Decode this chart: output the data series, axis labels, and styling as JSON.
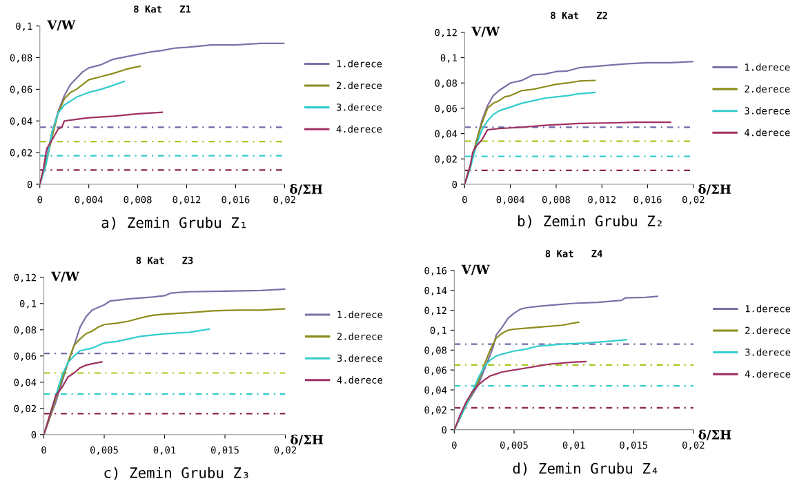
{
  "chart_data": [
    {
      "type": "line",
      "title": "8 Kat   Z1",
      "xlabel": "δ/ΣH",
      "ylabel": "V/W",
      "legend": "right",
      "grid": false,
      "xlim": [
        0,
        0.02
      ],
      "ylim": [
        0,
        0.1
      ],
      "xticks": [
        0,
        {
          "value": 0.004,
          "label": "0,004"
        },
        {
          "value": 0.008,
          "label": "0,008"
        },
        {
          "value": 0.012,
          "label": "0,012"
        },
        {
          "value": 0.016,
          "label": "0,016"
        },
        {
          "value": 0.02,
          "label": "0,02"
        }
      ],
      "yticks": [
        0,
        {
          "value": 0.02,
          "label": "0,02"
        },
        {
          "value": 0.04,
          "label": "0,04"
        },
        {
          "value": 0.06,
          "label": "0,06"
        },
        {
          "value": 0.08,
          "label": "0,08"
        },
        {
          "value": 0.1,
          "label": "0,1"
        }
      ],
      "series": [
        {
          "name": "1.derece",
          "color": "#7b70a8",
          "x": [
            0,
            0.0005,
            0.001,
            0.0015,
            0.002,
            0.0025,
            0.003,
            0.0035,
            0.004,
            0.005,
            0.006,
            0.007,
            0.008,
            0.009,
            0.01,
            0.011,
            0.012,
            0.014,
            0.016,
            0.018,
            0.02
          ],
          "values": [
            0,
            0.015,
            0.033,
            0.046,
            0.056,
            0.063,
            0.067,
            0.071,
            0.0735,
            0.0755,
            0.079,
            0.0805,
            0.082,
            0.0835,
            0.0845,
            0.086,
            0.0865,
            0.088,
            0.088,
            0.089,
            0.089
          ]
        },
        {
          "name": "2.derece",
          "color": "#8c8c1c",
          "x": [
            0,
            0.0005,
            0.001,
            0.0015,
            0.002,
            0.0025,
            0.003,
            0.0035,
            0.004,
            0.005,
            0.006,
            0.007,
            0.0075,
            0.0082
          ],
          "values": [
            0,
            0.013,
            0.03,
            0.045,
            0.054,
            0.058,
            0.06,
            0.063,
            0.066,
            0.068,
            0.07,
            0.0725,
            0.0735,
            0.0745
          ]
        },
        {
          "name": "3.derece",
          "color": "#33cccc",
          "x": [
            0,
            0.0005,
            0.001,
            0.0015,
            0.002,
            0.003,
            0.004,
            0.005,
            0.006,
            0.0069
          ],
          "values": [
            0,
            0.012,
            0.033,
            0.045,
            0.05,
            0.055,
            0.058,
            0.06,
            0.0625,
            0.065
          ]
        },
        {
          "name": "4.derece",
          "color": "#a03060",
          "x": [
            0,
            0.0003,
            0.0005,
            0.0006,
            0.001,
            0.0015,
            0.0018,
            0.002,
            0.003,
            0.004,
            0.006,
            0.008,
            0.01
          ],
          "values": [
            0,
            0.01,
            0.02,
            0.023,
            0.028,
            0.035,
            0.036,
            0.04,
            0.041,
            0.042,
            0.043,
            0.0445,
            0.0455
          ]
        }
      ],
      "ref_lines": [
        {
          "axis": "y",
          "value": 0.036,
          "color": "#6e6aa8",
          "line_style": "dashed"
        },
        {
          "axis": "y",
          "value": 0.027,
          "color": "#a8c81e",
          "line_style": "dashed"
        },
        {
          "axis": "y",
          "value": 0.018,
          "color": "#33cccc",
          "line_style": "dashed"
        },
        {
          "axis": "y",
          "value": 0.009,
          "color": "#8b2252",
          "line_style": "dashed"
        }
      ],
      "annotations": [
        "a) Zemin Grubu Z₁"
      ]
    },
    {
      "type": "line",
      "title": "8 Kat   Z2",
      "xlabel": "δ/ΣH",
      "ylabel": "V/W",
      "legend": "right",
      "grid": false,
      "xlim": [
        0,
        0.02
      ],
      "ylim": [
        0,
        0.12
      ],
      "xticks": [
        0,
        {
          "value": 0.004,
          "label": "0,004"
        },
        {
          "value": 0.008,
          "label": "0,008"
        },
        {
          "value": 0.012,
          "label": "0,012"
        },
        {
          "value": 0.016,
          "label": "0,016"
        },
        {
          "value": 0.02,
          "label": "0,02"
        }
      ],
      "yticks": [
        0,
        {
          "value": 0.02,
          "label": "0,02"
        },
        {
          "value": 0.04,
          "label": "0,04"
        },
        {
          "value": 0.06,
          "label": "0,06"
        },
        {
          "value": 0.08,
          "label": "0,08"
        },
        {
          "value": 0.1,
          "label": "0,1"
        },
        {
          "value": 0.12,
          "label": "0,12"
        }
      ],
      "series": [
        {
          "name": "1.derece",
          "color": "#7b70a8",
          "x": [
            0,
            0.0005,
            0.001,
            0.0015,
            0.002,
            0.0025,
            0.003,
            0.004,
            0.005,
            0.006,
            0.007,
            0.008,
            0.009,
            0.01,
            0.012,
            0.014,
            0.016,
            0.018,
            0.02
          ],
          "values": [
            0,
            0.015,
            0.033,
            0.05,
            0.062,
            0.07,
            0.074,
            0.08,
            0.082,
            0.0865,
            0.087,
            0.089,
            0.0895,
            0.092,
            0.0935,
            0.095,
            0.096,
            0.096,
            0.097
          ]
        },
        {
          "name": "2.derece",
          "color": "#8c8c1c",
          "x": [
            0,
            0.0005,
            0.001,
            0.0015,
            0.002,
            0.0025,
            0.003,
            0.0035,
            0.004,
            0.005,
            0.006,
            0.007,
            0.008,
            0.009,
            0.01,
            0.0114
          ],
          "values": [
            0,
            0.015,
            0.033,
            0.048,
            0.06,
            0.064,
            0.066,
            0.069,
            0.07,
            0.074,
            0.075,
            0.077,
            0.079,
            0.08,
            0.0815,
            0.082
          ]
        },
        {
          "name": "3.derece",
          "color": "#33cccc",
          "x": [
            0,
            0.0005,
            0.001,
            0.0015,
            0.002,
            0.0025,
            0.003,
            0.004,
            0.005,
            0.006,
            0.007,
            0.008,
            0.009,
            0.01,
            0.0114
          ],
          "values": [
            0,
            0.013,
            0.03,
            0.043,
            0.05,
            0.055,
            0.058,
            0.061,
            0.064,
            0.066,
            0.068,
            0.069,
            0.07,
            0.0715,
            0.0725
          ]
        },
        {
          "name": "4.derece",
          "color": "#a03060",
          "x": [
            0,
            0.0005,
            0.0007,
            0.001,
            0.0015,
            0.002,
            0.003,
            0.005,
            0.007,
            0.01,
            0.013,
            0.015,
            0.018
          ],
          "values": [
            0,
            0.015,
            0.025,
            0.03,
            0.035,
            0.043,
            0.044,
            0.045,
            0.0465,
            0.048,
            0.0485,
            0.049,
            0.049
          ]
        }
      ],
      "ref_lines": [
        {
          "axis": "y",
          "value": 0.045,
          "color": "#6e6aa8",
          "line_style": "dashed"
        },
        {
          "axis": "y",
          "value": 0.034,
          "color": "#a8c81e",
          "line_style": "dashed"
        },
        {
          "axis": "y",
          "value": 0.022,
          "color": "#33cccc",
          "line_style": "dashed"
        },
        {
          "axis": "y",
          "value": 0.011,
          "color": "#8b2252",
          "line_style": "dashed"
        }
      ],
      "annotations": [
        "b) Zemin Grubu Z₂"
      ]
    },
    {
      "type": "line",
      "title": "8 Kat   Z3",
      "xlabel": "δ/ΣH",
      "ylabel": "V/W",
      "legend": "right",
      "grid": false,
      "xlim": [
        0,
        0.02
      ],
      "ylim": [
        0,
        0.12
      ],
      "xticks": [
        0,
        {
          "value": 0.005,
          "label": "0,005"
        },
        {
          "value": 0.01,
          "label": "0,01"
        },
        {
          "value": 0.015,
          "label": "0,015"
        },
        {
          "value": 0.02,
          "label": "0,02"
        }
      ],
      "yticks": [
        0,
        {
          "value": 0.02,
          "label": "0,02"
        },
        {
          "value": 0.04,
          "label": "0,04"
        },
        {
          "value": 0.06,
          "label": "0,06"
        },
        {
          "value": 0.08,
          "label": "0,08"
        },
        {
          "value": 0.1,
          "label": "0,1"
        },
        {
          "value": 0.12,
          "label": "0,12"
        }
      ],
      "series": [
        {
          "name": "1.derece",
          "color": "#7b70a8",
          "x": [
            0,
            0.0005,
            0.001,
            0.0015,
            0.002,
            0.0025,
            0.003,
            0.0035,
            0.004,
            0.0045,
            0.005,
            0.0055,
            0.007,
            0.009,
            0.01,
            0.0105,
            0.012,
            0.015,
            0.018,
            0.02
          ],
          "values": [
            0,
            0.013,
            0.025,
            0.04,
            0.055,
            0.068,
            0.082,
            0.09,
            0.095,
            0.097,
            0.099,
            0.102,
            0.1035,
            0.105,
            0.106,
            0.108,
            0.109,
            0.1095,
            0.11,
            0.111
          ]
        },
        {
          "name": "2.derece",
          "color": "#8c8c1c",
          "x": [
            0,
            0.0005,
            0.001,
            0.0015,
            0.002,
            0.0025,
            0.003,
            0.0035,
            0.004,
            0.0045,
            0.005,
            0.006,
            0.007,
            0.008,
            0.009,
            0.01,
            0.012,
            0.014,
            0.016,
            0.018,
            0.02
          ],
          "values": [
            0,
            0.013,
            0.028,
            0.042,
            0.055,
            0.068,
            0.073,
            0.077,
            0.079,
            0.082,
            0.084,
            0.085,
            0.0865,
            0.089,
            0.091,
            0.092,
            0.093,
            0.0945,
            0.095,
            0.095,
            0.096
          ]
        },
        {
          "name": "3.derece",
          "color": "#33cccc",
          "x": [
            0,
            0.0005,
            0.001,
            0.0015,
            0.002,
            0.0025,
            0.003,
            0.004,
            0.005,
            0.006,
            0.008,
            0.01,
            0.012,
            0.0137
          ],
          "values": [
            0,
            0.015,
            0.03,
            0.045,
            0.055,
            0.06,
            0.064,
            0.066,
            0.07,
            0.071,
            0.075,
            0.077,
            0.078,
            0.0805
          ]
        },
        {
          "name": "4.derece",
          "color": "#a03060",
          "x": [
            0,
            0.0005,
            0.001,
            0.0015,
            0.002,
            0.0025,
            0.003,
            0.0035,
            0.004,
            0.0048
          ],
          "values": [
            0,
            0.015,
            0.03,
            0.036,
            0.044,
            0.047,
            0.051,
            0.053,
            0.054,
            0.0555
          ]
        }
      ],
      "ref_lines": [
        {
          "axis": "y",
          "value": 0.062,
          "color": "#6e6aa8",
          "line_style": "dashed"
        },
        {
          "axis": "y",
          "value": 0.047,
          "color": "#a8c81e",
          "line_style": "dashed"
        },
        {
          "axis": "y",
          "value": 0.031,
          "color": "#33cccc",
          "line_style": "dashed"
        },
        {
          "axis": "y",
          "value": 0.016,
          "color": "#8b2252",
          "line_style": "dashed"
        }
      ],
      "annotations": [
        "c) Zemin Grubu Z₃"
      ]
    },
    {
      "type": "line",
      "title": "8 Kat   Z4",
      "xlabel": "δ/ΣH",
      "ylabel": "V/W",
      "legend": "right",
      "grid": false,
      "xlim": [
        0,
        0.02
      ],
      "ylim": [
        0,
        0.16
      ],
      "xticks": [
        0,
        {
          "value": 0.005,
          "label": "0,005"
        },
        {
          "value": 0.01,
          "label": "0,01"
        },
        {
          "value": 0.015,
          "label": "0,015"
        },
        {
          "value": 0.02,
          "label": "0,02"
        }
      ],
      "yticks": [
        0,
        {
          "value": 0.02,
          "label": "0,02"
        },
        {
          "value": 0.04,
          "label": "0,04"
        },
        {
          "value": 0.06,
          "label": "0,06"
        },
        {
          "value": 0.08,
          "label": "0,08"
        },
        {
          "value": 0.1,
          "label": "0,1"
        },
        {
          "value": 0.12,
          "label": "0,12"
        },
        {
          "value": 0.14,
          "label": "0,14"
        },
        {
          "value": 0.16,
          "label": "0,16"
        }
      ],
      "series": [
        {
          "name": "1.derece",
          "color": "#7b70a8",
          "x": [
            0,
            0.001,
            0.002,
            0.0025,
            0.003,
            0.0033,
            0.0035,
            0.004,
            0.0045,
            0.005,
            0.0055,
            0.006,
            0.007,
            0.008,
            0.009,
            0.01,
            0.012,
            0.014,
            0.0143,
            0.016,
            0.017
          ],
          "values": [
            0,
            0.025,
            0.045,
            0.06,
            0.075,
            0.085,
            0.095,
            0.103,
            0.112,
            0.117,
            0.121,
            0.1225,
            0.124,
            0.125,
            0.126,
            0.127,
            0.128,
            0.13,
            0.1325,
            0.133,
            0.134
          ]
        },
        {
          "name": "2.derece",
          "color": "#8c8c1c",
          "x": [
            0,
            0.001,
            0.002,
            0.0025,
            0.003,
            0.0035,
            0.004,
            0.0045,
            0.005,
            0.007,
            0.009,
            0.0104
          ],
          "values": [
            0,
            0.025,
            0.048,
            0.065,
            0.08,
            0.092,
            0.097,
            0.1,
            0.101,
            0.103,
            0.105,
            0.108
          ]
        },
        {
          "name": "3.derece",
          "color": "#33cccc",
          "x": [
            0,
            0.001,
            0.0015,
            0.002,
            0.0025,
            0.003,
            0.0035,
            0.004,
            0.005,
            0.006,
            0.007,
            0.009,
            0.011,
            0.013,
            0.0144
          ],
          "values": [
            0,
            0.025,
            0.038,
            0.052,
            0.063,
            0.07,
            0.074,
            0.076,
            0.079,
            0.081,
            0.084,
            0.086,
            0.087,
            0.089,
            0.0905
          ]
        },
        {
          "name": "4.derece",
          "color": "#a03060",
          "x": [
            0,
            0.0005,
            0.001,
            0.0015,
            0.002,
            0.0025,
            0.003,
            0.0035,
            0.004,
            0.005,
            0.006,
            0.007,
            0.008,
            0.01,
            0.011
          ],
          "values": [
            0,
            0.015,
            0.028,
            0.038,
            0.045,
            0.05,
            0.054,
            0.056,
            0.058,
            0.06,
            0.062,
            0.064,
            0.066,
            0.068,
            0.0685
          ]
        }
      ],
      "ref_lines": [
        {
          "axis": "y",
          "value": 0.086,
          "color": "#6e6aa8",
          "line_style": "dashed"
        },
        {
          "axis": "y",
          "value": 0.065,
          "color": "#a8c81e",
          "line_style": "dashed"
        },
        {
          "axis": "y",
          "value": 0.044,
          "color": "#33cccc",
          "line_style": "dashed"
        },
        {
          "axis": "y",
          "value": 0.022,
          "color": "#8b2252",
          "line_style": "dashed"
        }
      ],
      "annotations": [
        "d) Zemin Grubu Z₄"
      ]
    }
  ]
}
